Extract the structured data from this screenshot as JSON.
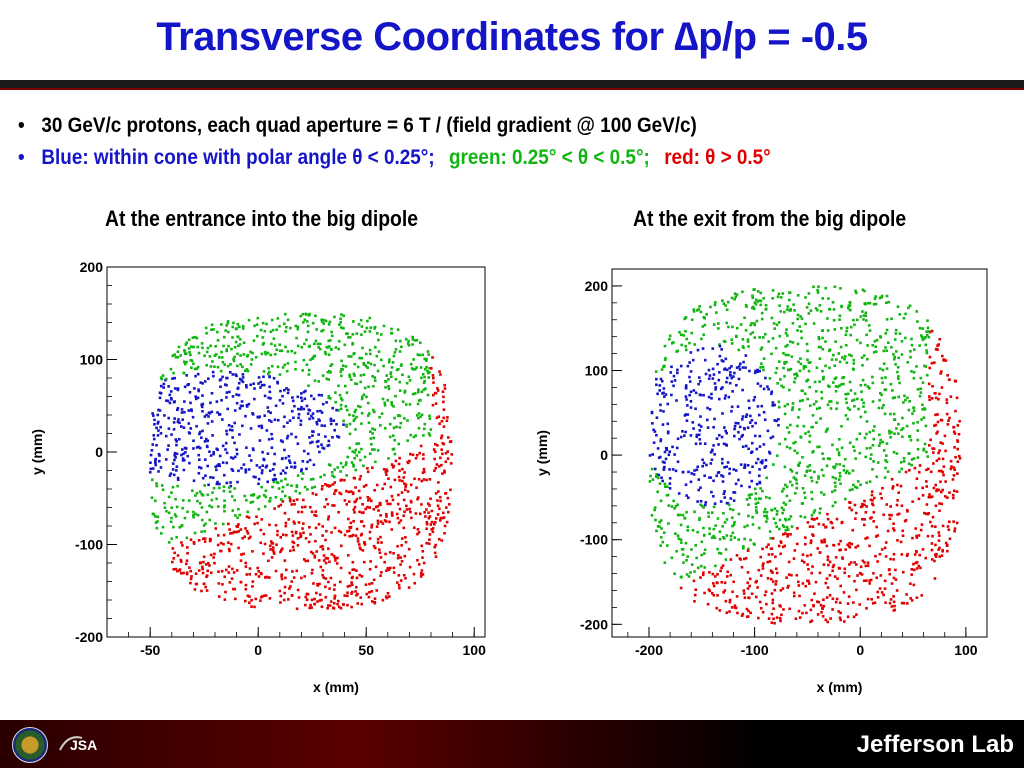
{
  "slide": {
    "title": "Transverse Coordinates for ∆p/p = -0.5",
    "bullets": [
      {
        "text": "30 GeV/c protons, each quad aperture = 6 T / (field gradient @ 100 GeV/c)"
      },
      {
        "parts": [
          {
            "text": "Blue: within cone with polar angle θ < 0.25°;",
            "color": "#1515c8"
          },
          {
            "text": "green: 0.25° < θ < 0.5°;",
            "color": "#11b511"
          },
          {
            "text": "red: θ > 0.5°",
            "color": "#e00000"
          }
        ]
      }
    ],
    "footer": {
      "lab_name": "Jefferson Lab",
      "logos": [
        "doe-seal-icon",
        "jsa-logo-icon"
      ]
    }
  },
  "colors": {
    "blue": "#1515c8",
    "green": "#11b511",
    "red": "#e00000",
    "title": "#1515c8"
  },
  "chart_data": [
    {
      "type": "scatter",
      "title": "At the entrance into the big dipole",
      "xlabel": "x (mm)",
      "ylabel": "y (mm)",
      "xlim": [
        -70,
        105
      ],
      "ylim": [
        -200,
        200
      ],
      "xticks": [
        -50,
        0,
        50,
        100
      ],
      "yticks": [
        -200,
        -100,
        0,
        100,
        200
      ],
      "grid": false,
      "series": [
        {
          "color": "blue",
          "region": {
            "shape": "ellipse",
            "cx": -15,
            "cy": 25,
            "rx": 55,
            "ry": 62
          }
        },
        {
          "color": "green",
          "region": {
            "shape": "blob",
            "x_range": [
              -55,
              80
            ],
            "y_range": [
              -110,
              170
            ]
          }
        },
        {
          "color": "red",
          "region": {
            "shape": "crescent",
            "x_range": [
              -50,
              90
            ],
            "y_range": [
              -170,
              150
            ]
          }
        }
      ]
    },
    {
      "type": "scatter",
      "title": "At the exit from the big dipole",
      "xlabel": "x (mm)",
      "ylabel": "y (mm)",
      "xlim": [
        -235,
        120
      ],
      "ylim": [
        -215,
        220
      ],
      "xticks": [
        -200,
        -100,
        0,
        100
      ],
      "yticks": [
        -200,
        -100,
        0,
        100,
        200
      ],
      "grid": false,
      "series": [
        {
          "color": "blue",
          "region": {
            "shape": "ellipse",
            "cx": -140,
            "cy": 35,
            "rx": 65,
            "ry": 95
          }
        },
        {
          "color": "green",
          "region": {
            "shape": "blob",
            "x_range": [
              -200,
              65
            ],
            "y_range": [
              -165,
              200
            ]
          }
        },
        {
          "color": "red",
          "region": {
            "shape": "crescent",
            "x_range": [
              -200,
              95
            ],
            "y_range": [
              -200,
              200
            ]
          }
        }
      ]
    }
  ]
}
